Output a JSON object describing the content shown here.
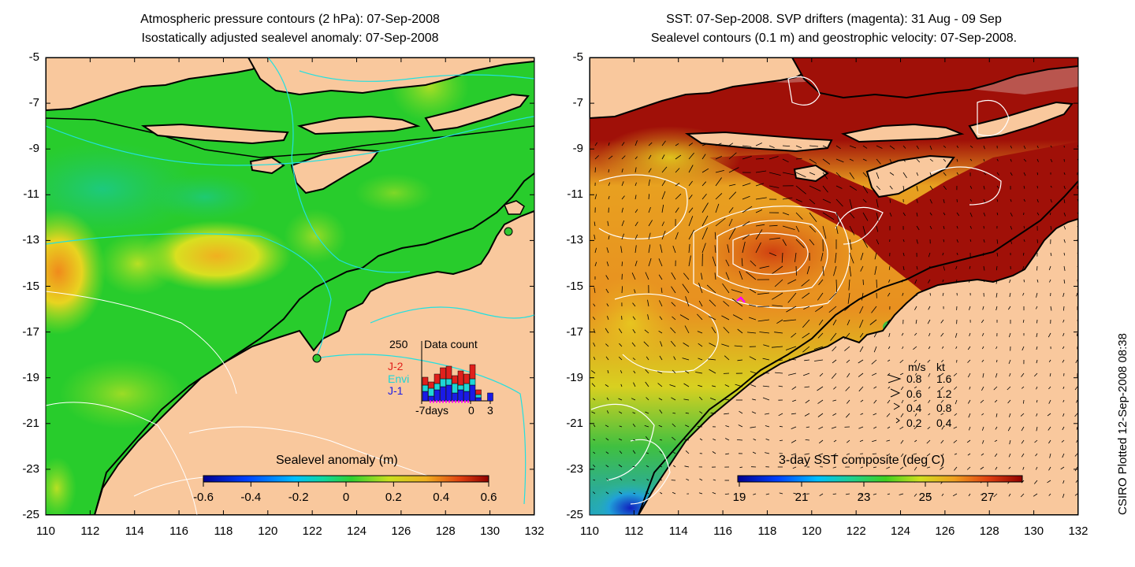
{
  "left_panel": {
    "title_line1": "Atmospheric pressure contours (2 hPa): 07-Sep-2008",
    "title_line2": "Isostatically adjusted sealevel anomaly: 07-Sep-2008",
    "colorbar": {
      "label": "Sealevel anomaly (m)",
      "ticks": [
        "-0.6",
        "-0.4",
        "-0.2",
        "0",
        "0.2",
        "0.4",
        "0.6"
      ]
    },
    "inset": {
      "title": "Data count",
      "y_max_label": "250",
      "legend": [
        {
          "name": "J-2",
          "color": "#e0201c"
        },
        {
          "name": "Envi",
          "color": "#1ed6d6"
        },
        {
          "name": "J-1",
          "color": "#1a1ae6"
        }
      ],
      "x_labels": [
        "-7days",
        "0",
        "3"
      ]
    }
  },
  "right_panel": {
    "title_line1": "SST: 07-Sep-2008. SVP drifters (magenta): 31 Aug - 09 Sep",
    "title_line2": "Sealevel contours (0.1 m) and geostrophic velocity: 07-Sep-2008.",
    "colorbar": {
      "label": "3-day SST composite (deg C)",
      "ticks": [
        "19",
        "21",
        "23",
        "25",
        "27"
      ]
    },
    "velocity_key": {
      "header_ms": "m/s",
      "header_kt": "kt",
      "rows": [
        {
          "ms": "0.8",
          "kt": "1.6"
        },
        {
          "ms": "0.6",
          "kt": "1.2"
        },
        {
          "ms": "0.4",
          "kt": "0.8"
        },
        {
          "ms": "0.2",
          "kt": "0.4"
        }
      ]
    }
  },
  "axes": {
    "lat_ticks": [
      "-5",
      "-7",
      "-9",
      "-11",
      "-13",
      "-15",
      "-17",
      "-19",
      "-21",
      "-23",
      "-25"
    ],
    "lon_ticks": [
      "110",
      "112",
      "114",
      "116",
      "118",
      "120",
      "122",
      "124",
      "126",
      "128",
      "130",
      "132"
    ]
  },
  "credit": "CSIRO Plotted 12-Sep-2008 08:38",
  "colors": {
    "land": "#f9c89d",
    "coast": "#000000",
    "sla_base": "#28cc2c",
    "sst_warm": "#a01008",
    "sst_mid": "#f0a01c",
    "sst_cool": "#32c84a",
    "drifter": "#ff00ff",
    "contour_cyan": "#22e0e0"
  }
}
